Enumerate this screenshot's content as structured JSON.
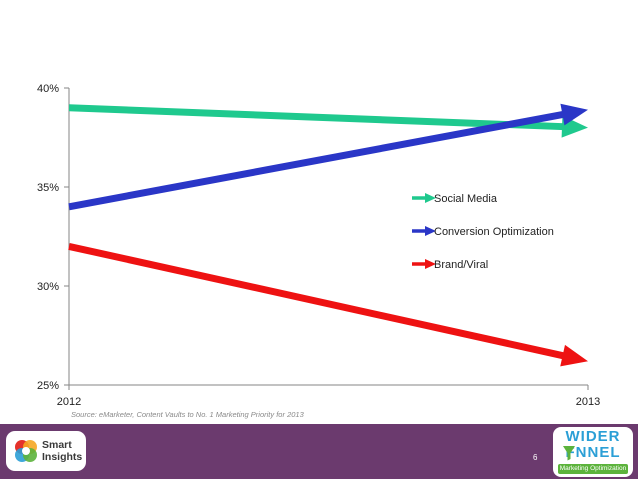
{
  "chart_data": {
    "type": "line",
    "categories": [
      "2012",
      "2013"
    ],
    "ylim": [
      25,
      40
    ],
    "y_ticks": [
      "25%",
      "30%",
      "35%",
      "40%"
    ],
    "y_tick_values": [
      25,
      30,
      35,
      40
    ],
    "series": [
      {
        "name": "Social Media",
        "values": [
          39.0,
          38.0
        ],
        "color": "#1fc98e"
      },
      {
        "name": "Conversion Optimization",
        "values": [
          34.0,
          38.9
        ],
        "color": "#2a36c7"
      },
      {
        "name": "Brand/Viral",
        "values": [
          32.0,
          26.2
        ],
        "color": "#ee1212"
      }
    ],
    "legend_position": "right",
    "source": "Source: eMarketer, Content Vaults to No. 1 Marketing Priority for 2013"
  },
  "footer": {
    "background": "#6b3a6e",
    "smart_insights_line1": "Smart",
    "smart_insights_line2": "Insights",
    "page_number": "6",
    "wider_funnel_line1": "WIDER",
    "wider_funnel_line2": "FNNEL",
    "wider_funnel_tagline": "Marketing Optimization"
  }
}
